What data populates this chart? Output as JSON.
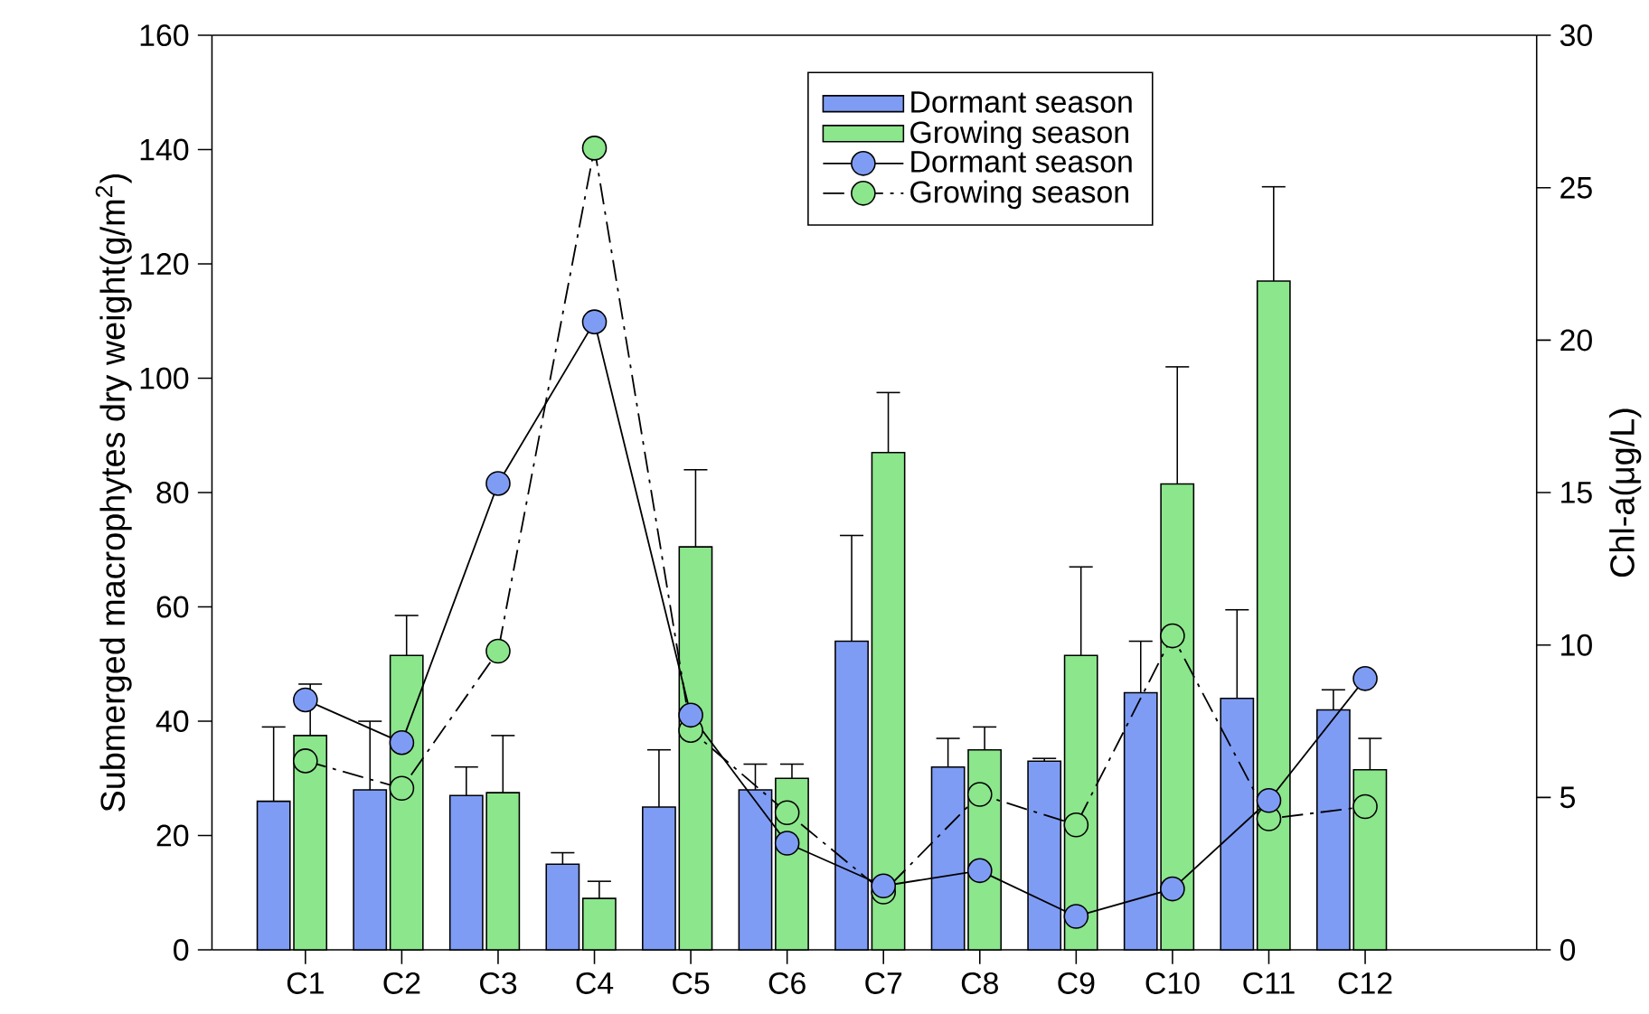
{
  "chart_data": {
    "type": "bar",
    "xlabel": null,
    "ylabel": "Submerged macrophytes dry weight(g/m$^{2}$)",
    "y2label": "Chl-a(μg/L)",
    "categories": [
      "C1",
      "C2",
      "C3",
      "C4",
      "C5",
      "C6",
      "C7",
      "C8",
      "C9",
      "C10",
      "C11",
      "C12"
    ],
    "ylim": [
      0,
      160
    ],
    "yticks": [
      0,
      20,
      40,
      60,
      80,
      100,
      120,
      140,
      160
    ],
    "y2lim": [
      0,
      30
    ],
    "y2ticks": [
      0,
      5,
      10,
      15,
      20,
      25,
      30
    ],
    "legend": "top",
    "grid": false,
    "series": [
      {
        "name": "Dormant season",
        "color": "#7f9cf5",
        "values": [
          26,
          28,
          27,
          15,
          25,
          28,
          54,
          32,
          33,
          45,
          44,
          42
        ],
        "errors": [
          [
            26,
            39
          ],
          [
            28,
            40
          ],
          [
            27,
            32
          ],
          [
            15,
            17
          ],
          [
            25,
            35
          ],
          [
            28,
            32.5
          ],
          [
            54,
            72.5
          ],
          [
            32,
            37
          ],
          [
            33,
            33.5
          ],
          [
            45,
            54
          ],
          [
            44,
            59.5
          ],
          [
            42,
            45.5
          ]
        ]
      },
      {
        "name": "Growing season",
        "color": "#8ce68c",
        "values": [
          37.5,
          51.5,
          27.5,
          9,
          70.5,
          30,
          87,
          35,
          51.5,
          81.5,
          117,
          31.5
        ],
        "errors": [
          [
            37.5,
            46.5
          ],
          [
            51.5,
            58.5
          ],
          [
            27.5,
            37.5
          ],
          [
            9,
            12
          ],
          [
            70.5,
            84
          ],
          [
            30,
            32.5
          ],
          [
            87,
            97.5
          ],
          [
            35,
            39
          ],
          [
            51.5,
            67
          ],
          [
            81.5,
            102
          ],
          [
            117,
            133.5
          ],
          [
            31.5,
            37
          ]
        ]
      },
      {
        "name": "Dormant season",
        "type": "line",
        "axis": "y2",
        "color": "#7f9cf5",
        "marker": "circle",
        "line_style": "solid",
        "values": [
          8.2,
          6.8,
          15.3,
          20.6,
          7.7,
          3.5,
          2.1,
          2.6,
          1.1,
          2.0,
          4.9,
          8.9
        ]
      },
      {
        "name": "Growing season",
        "type": "line",
        "axis": "y2",
        "color": "#8ce68c",
        "marker": "circle",
        "line_style": "dashdot",
        "values": [
          6.2,
          5.3,
          9.8,
          26.3,
          7.2,
          4.5,
          1.9,
          5.1,
          4.1,
          10.3,
          4.3,
          4.7
        ]
      }
    ]
  }
}
